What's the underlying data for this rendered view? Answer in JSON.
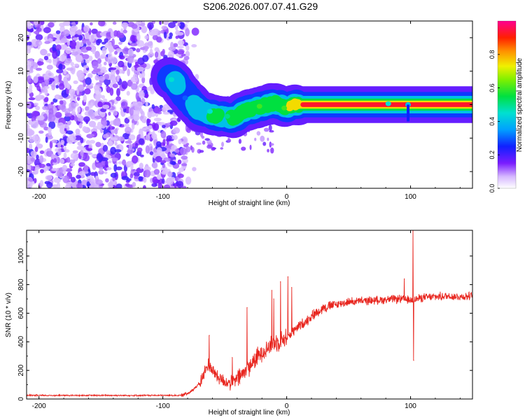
{
  "title": "S206.2026.007.07.41.G29",
  "colors": {
    "snr_line": "#e8261f",
    "axis": "#000000",
    "blob": "#6a10d8",
    "trace": "#ff1a1a"
  },
  "chart_data": [
    {
      "type": "heatmap",
      "xlabel": "Height of straight line (km)",
      "ylabel": "Frequency (Hz)",
      "xlim": [
        -210,
        150
      ],
      "ylim": [
        -25,
        25
      ],
      "x_ticks": [
        -200,
        -100,
        0,
        100
      ],
      "x_tick_labels": [
        "-200",
        "-100",
        "0",
        "100"
      ],
      "y_ticks": [
        -20,
        -10,
        0,
        10,
        20
      ],
      "y_tick_labels": [
        "-20",
        "-10",
        "0",
        "10",
        "20"
      ],
      "colorbar": {
        "label": "Normalized spectral amplitude",
        "range": [
          0,
          1
        ],
        "ticks": [
          0.0,
          0.2,
          0.4,
          0.6,
          0.8
        ],
        "tick_labels": [
          "0.0",
          "0.2",
          "0.4",
          "0.6",
          "0.8"
        ]
      },
      "noise_region_x": [
        -210,
        -80
      ],
      "ridge": {
        "x": [
          -95,
          -90,
          -85,
          -80,
          -75,
          -70,
          -65,
          -60,
          -55,
          -50,
          -45,
          -40,
          -35,
          -30,
          -25,
          -20,
          -15,
          -10,
          -5,
          0,
          5,
          10,
          20,
          40,
          60,
          80,
          100,
          120,
          150
        ],
        "y": [
          8,
          7,
          4,
          2,
          0,
          -2,
          -2.5,
          -3,
          -3.5,
          -3.5,
          -4,
          -3.5,
          -2,
          -1.5,
          -1,
          -0.5,
          0,
          0.5,
          0,
          -1,
          0,
          0,
          0,
          0,
          0,
          0,
          0,
          0,
          0
        ],
        "amplitude": [
          0.2,
          0.4,
          0.25,
          0.3,
          0.35,
          0.45,
          0.45,
          0.5,
          0.5,
          0.45,
          0.5,
          0.55,
          0.6,
          0.6,
          0.65,
          0.65,
          0.6,
          0.6,
          0.55,
          0.65,
          0.75,
          0.85,
          0.95,
          0.95,
          0.95,
          0.95,
          0.95,
          0.95,
          0.95
        ]
      }
    },
    {
      "type": "line",
      "xlabel": "Height of straight line (km)",
      "ylabel": "SNR (10 * v/v)",
      "xlim": [
        -210,
        150
      ],
      "ylim": [
        0,
        1180
      ],
      "x_ticks": [
        -200,
        -100,
        0,
        100
      ],
      "x_tick_labels": [
        "-200",
        "-100",
        "0",
        "100"
      ],
      "y_ticks": [
        0,
        200,
        400,
        600,
        800,
        1000
      ],
      "y_tick_labels": [
        "0",
        "200",
        "400",
        "600",
        "800",
        "1000"
      ],
      "series": [
        {
          "name": "SNR",
          "x": [
            -210,
            -100,
            -85,
            -80,
            -75,
            -70,
            -66,
            -63,
            -60,
            -55,
            -50,
            -45,
            -40,
            -35,
            -30,
            -25,
            -20,
            -15,
            -10,
            -5,
            0,
            5,
            10,
            15,
            20,
            25,
            30,
            40,
            50,
            60,
            70,
            80,
            90,
            95,
            100,
            105,
            110,
            120,
            130,
            140,
            150
          ],
          "y": [
            25,
            25,
            25,
            40,
            70,
            110,
            190,
            250,
            200,
            150,
            120,
            110,
            140,
            180,
            230,
            280,
            330,
            360,
            390,
            410,
            430,
            470,
            510,
            540,
            580,
            610,
            640,
            660,
            680,
            685,
            690,
            695,
            700,
            695,
            690,
            700,
            710,
            715,
            720,
            715,
            720
          ]
        }
      ],
      "spikes": [
        {
          "x": -62.5,
          "y": 445
        },
        {
          "x": -44,
          "y": 290
        },
        {
          "x": -32,
          "y": 640
        },
        {
          "x": -12,
          "y": 760
        },
        {
          "x": -10.5,
          "y": 700
        },
        {
          "x": -5,
          "y": 820
        },
        {
          "x": 1,
          "y": 855
        },
        {
          "x": 4,
          "y": 780
        },
        {
          "x": 95,
          "y": 840
        },
        {
          "x": 102,
          "y": 1180
        },
        {
          "x": 102.5,
          "y": 270
        }
      ]
    }
  ]
}
